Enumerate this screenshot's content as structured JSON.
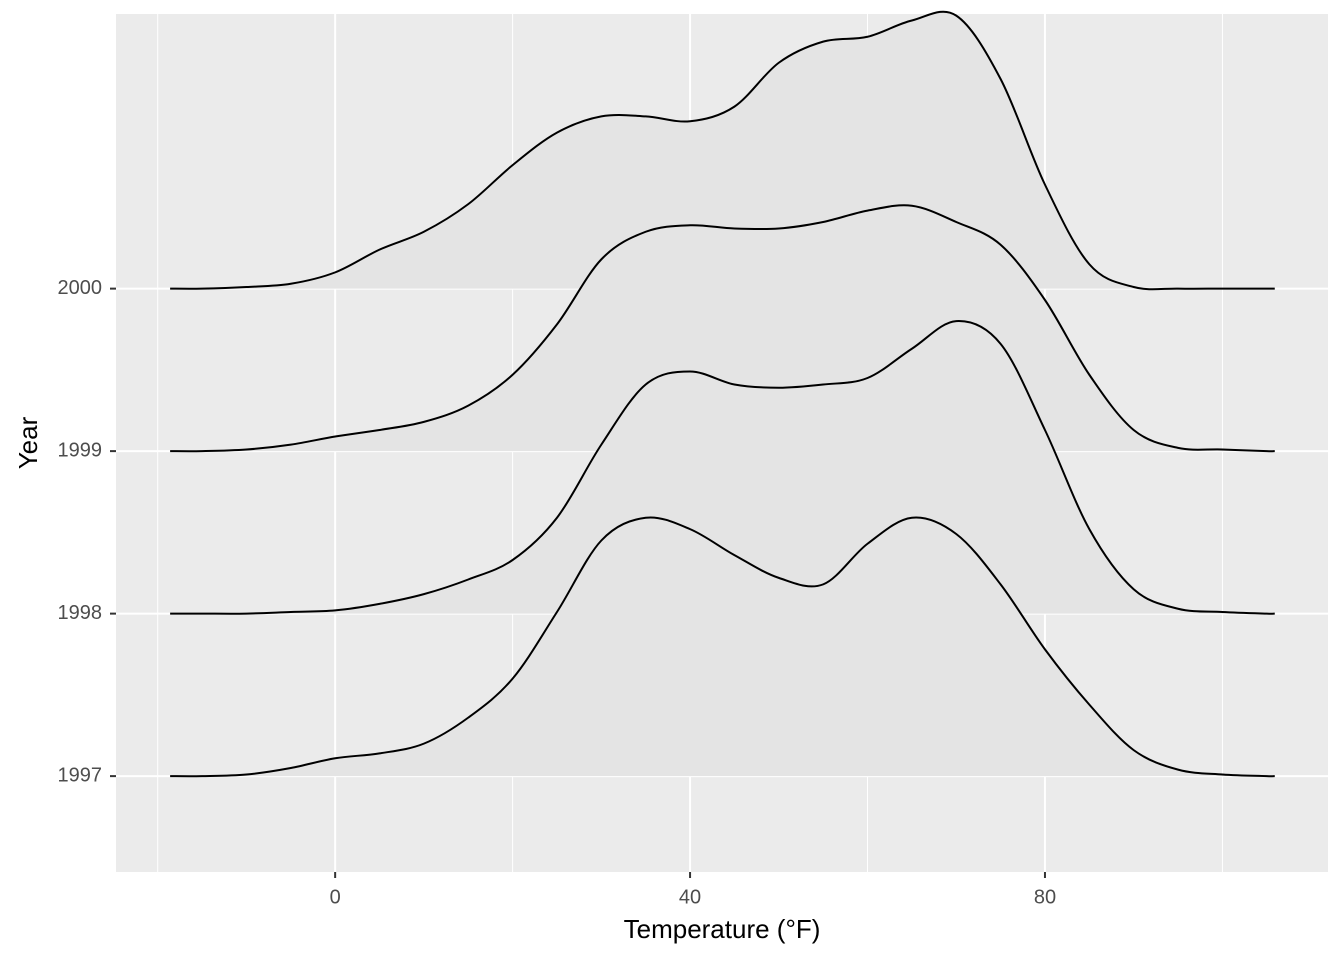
{
  "chart_data": {
    "type": "ridgeline",
    "xlabel": "Temperature (°F)",
    "ylabel": "Year",
    "xlim": [
      -24.7,
      111.9
    ],
    "xticks": [
      0,
      40,
      80
    ],
    "xminorticks": [
      -20,
      20,
      60,
      100
    ],
    "ylim": [
      1996.41,
      2001.69
    ],
    "yticks": [
      1997,
      1998,
      1999,
      2000
    ],
    "grid": true,
    "fill": "#e4e4e4",
    "line_color": "#000000",
    "x": [
      -18.6,
      -15,
      -10,
      -5,
      0,
      5,
      10,
      15,
      20,
      25,
      30,
      35,
      40,
      45,
      50,
      55,
      60,
      65,
      70,
      75,
      80,
      85,
      90,
      95,
      100,
      105,
      105.9
    ],
    "series": [
      {
        "values": [
          0,
          0,
          0.01,
          0.05,
          0.11,
          0.14,
          0.2,
          0.36,
          0.6,
          1.01,
          1.45,
          1.59,
          1.52,
          1.36,
          1.22,
          1.18,
          1.43,
          1.59,
          1.49,
          1.18,
          0.78,
          0.44,
          0.16,
          0.04,
          0.01,
          0,
          0
        ]
      },
      {
        "values": [
          0,
          0,
          0,
          0.01,
          0.02,
          0.06,
          0.12,
          0.21,
          0.33,
          0.59,
          1.04,
          1.41,
          1.49,
          1.41,
          1.39,
          1.41,
          1.45,
          1.63,
          1.8,
          1.66,
          1.13,
          0.52,
          0.15,
          0.03,
          0.01,
          0,
          0
        ]
      },
      {
        "values": [
          0,
          0,
          0.01,
          0.04,
          0.09,
          0.13,
          0.18,
          0.28,
          0.47,
          0.78,
          1.18,
          1.35,
          1.39,
          1.37,
          1.37,
          1.41,
          1.48,
          1.51,
          1.41,
          1.27,
          0.93,
          0.47,
          0.13,
          0.02,
          0.01,
          0,
          0
        ]
      },
      {
        "values": [
          0,
          0,
          0.01,
          0.03,
          0.1,
          0.24,
          0.35,
          0.52,
          0.76,
          0.96,
          1.06,
          1.06,
          1.03,
          1.12,
          1.39,
          1.52,
          1.55,
          1.65,
          1.68,
          1.29,
          0.64,
          0.15,
          0.01,
          0,
          0,
          0,
          0
        ]
      }
    ]
  }
}
